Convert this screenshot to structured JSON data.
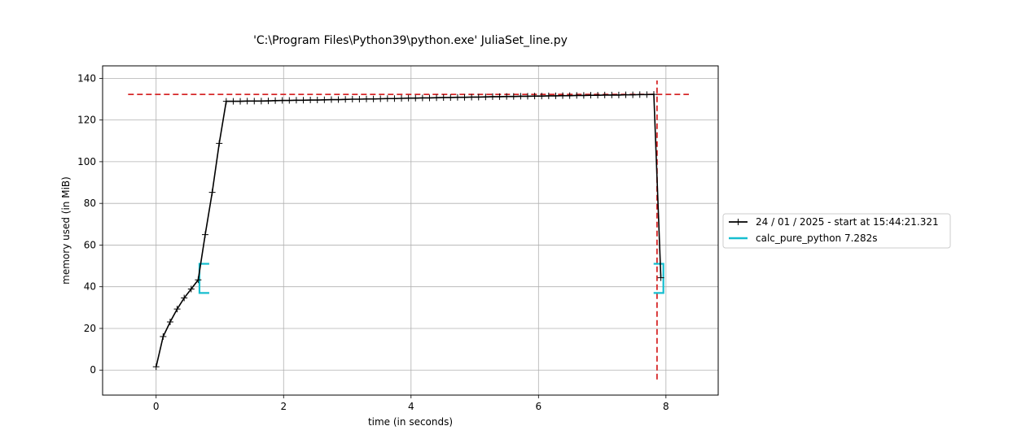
{
  "chart_data": {
    "type": "line",
    "title": "'C:\\Program Files\\Python39\\python.exe' JuliaSet_line.py",
    "xlabel": "time (in seconds)",
    "ylabel": "memory used (in MiB)",
    "xlim": [
      -0.84,
      8.82
    ],
    "ylim": [
      -12,
      146
    ],
    "xticks": [
      0,
      2,
      4,
      6,
      8
    ],
    "yticks": [
      0,
      20,
      40,
      60,
      80,
      100,
      120,
      140
    ],
    "grid": true,
    "legend_position": "outside-right",
    "series": [
      {
        "name": "24 / 01 / 2025 - start at 15:44:21.321",
        "color": "#000000",
        "marker": "plus",
        "x": [
          0.0,
          0.11,
          0.22,
          0.33,
          0.44,
          0.55,
          0.66,
          0.77,
          0.88,
          0.99,
          1.1,
          1.21,
          1.32,
          1.43,
          1.54,
          1.65,
          1.76,
          1.87,
          1.98,
          2.09,
          2.2,
          2.31,
          2.42,
          2.53,
          2.64,
          2.75,
          2.86,
          2.97,
          3.08,
          3.19,
          3.3,
          3.41,
          3.52,
          3.63,
          3.74,
          3.85,
          3.96,
          4.07,
          4.18,
          4.29,
          4.4,
          4.51,
          4.62,
          4.73,
          4.84,
          4.95,
          5.06,
          5.17,
          5.28,
          5.39,
          5.5,
          5.61,
          5.72,
          5.83,
          5.94,
          6.05,
          6.16,
          6.27,
          6.38,
          6.49,
          6.6,
          6.71,
          6.82,
          6.93,
          7.04,
          7.15,
          7.26,
          7.37,
          7.48,
          7.59,
          7.7,
          7.81,
          7.92
        ],
        "y": [
          1.6,
          16.1,
          23.1,
          29.3,
          34.6,
          38.9,
          43.3,
          65.0,
          85.3,
          108.8,
          129.0,
          129.0,
          129.0,
          129.1,
          129.1,
          129.1,
          129.2,
          129.3,
          129.4,
          129.4,
          129.5,
          129.5,
          129.6,
          129.6,
          129.7,
          129.8,
          129.8,
          129.9,
          130.0,
          130.0,
          130.1,
          130.1,
          130.2,
          130.3,
          130.3,
          130.4,
          130.5,
          130.5,
          130.6,
          130.6,
          130.7,
          130.8,
          130.8,
          130.9,
          130.9,
          131.0,
          131.0,
          131.1,
          131.2,
          131.2,
          131.3,
          131.3,
          131.4,
          131.4,
          131.5,
          131.5,
          131.6,
          131.6,
          131.7,
          131.7,
          131.8,
          131.8,
          131.9,
          131.9,
          132.0,
          132.0,
          132.0,
          132.1,
          132.1,
          132.2,
          132.2,
          132.3,
          44.3
        ]
      },
      {
        "name": "calc_pure_python 7.282s",
        "color": "#17becf",
        "type": "function-bracket",
        "start_x": 0.68,
        "end_x": 7.96,
        "y_range": [
          37,
          51
        ]
      }
    ],
    "annotations": [
      {
        "type": "hline",
        "y": 132.3,
        "x_range": [
          -0.44,
          8.36
        ],
        "color": "#d62728",
        "style": "dashed"
      },
      {
        "type": "vline",
        "x": 7.86,
        "y_range": [
          -4.5,
          139
        ],
        "color": "#d62728",
        "style": "dashed"
      }
    ]
  }
}
